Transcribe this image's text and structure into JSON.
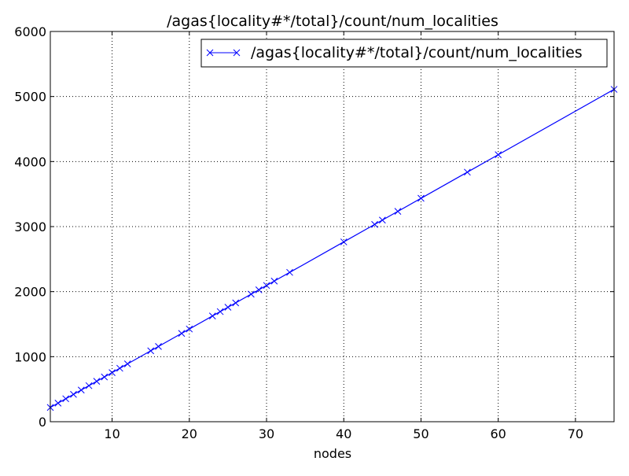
{
  "chart_data": {
    "type": "line",
    "title": "/agas{locality#*/total}/count/num_localities",
    "xlabel": "nodes",
    "ylabel": "",
    "xlim": [
      2,
      75
    ],
    "ylim": [
      0,
      6000
    ],
    "xticks": [
      10,
      20,
      30,
      40,
      50,
      60,
      70
    ],
    "yticks": [
      0,
      1000,
      2000,
      3000,
      4000,
      5000,
      6000
    ],
    "grid": true,
    "legend_position": "top-right",
    "series": [
      {
        "name": "/agas{locality#*/total}/count/num_localities",
        "color": "#0000ff",
        "marker": "x",
        "x": [
          2,
          3,
          4,
          5,
          6,
          7,
          8,
          9,
          10,
          11,
          12,
          15,
          16,
          19,
          20,
          23,
          24,
          25,
          26,
          28,
          29,
          30,
          31,
          33,
          40,
          44,
          45,
          47,
          50,
          56,
          60,
          75
        ],
        "y": [
          219,
          286,
          353,
          420,
          487,
          554,
          621,
          688,
          755,
          822,
          889,
          1090,
          1157,
          1358,
          1425,
          1626,
          1693,
          1760,
          1827,
          1961,
          2028,
          2095,
          2162,
          2296,
          2765,
          3033,
          3100,
          3234,
          3435,
          3837,
          4105,
          5110
        ]
      }
    ]
  }
}
